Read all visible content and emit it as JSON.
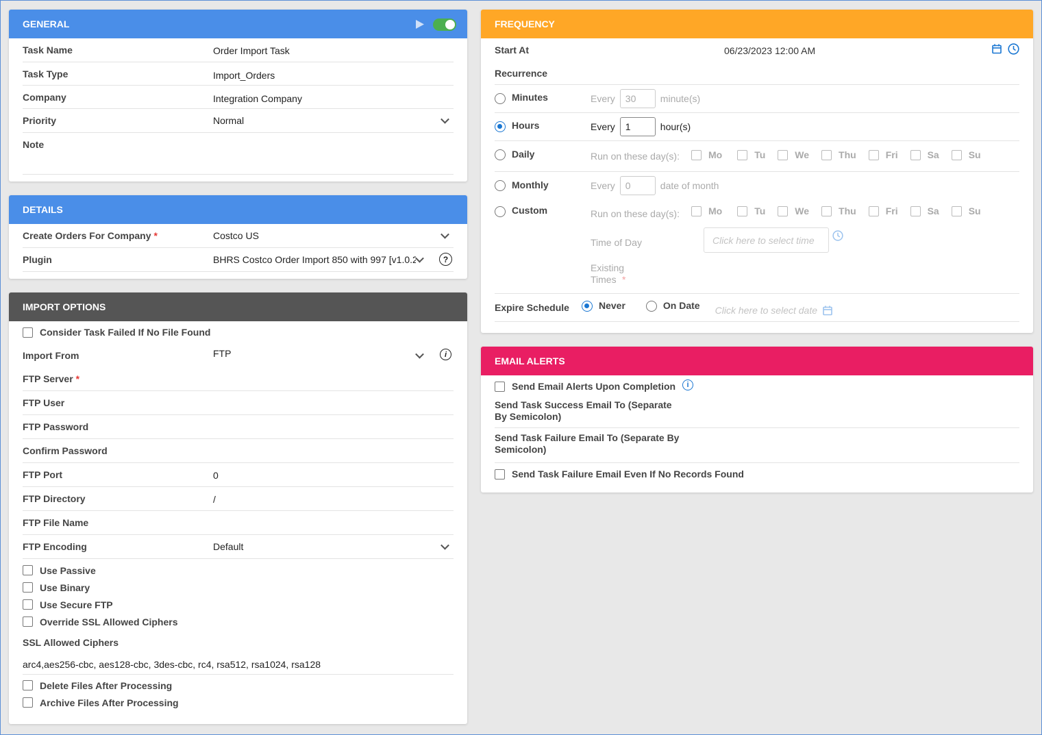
{
  "colors": {
    "general": "#4a8ee8",
    "details": "#4a8ee8",
    "import": "#555555",
    "frequency": "#ffa726",
    "email": "#e91e63",
    "accent": "#1976d2",
    "toggle": "#4caf50"
  },
  "general": {
    "title": "GENERAL",
    "task_name_label": "Task Name",
    "task_name": "Order Import Task",
    "task_type_label": "Task Type",
    "task_type": "Import_Orders",
    "company_label": "Company",
    "company": "Integration Company",
    "priority_label": "Priority",
    "priority": "Normal",
    "note_label": "Note",
    "enabled": true
  },
  "details": {
    "title": "DETAILS",
    "create_orders_label": "Create Orders For Company",
    "create_orders_value": "Costco US",
    "plugin_label": "Plugin",
    "plugin_value": "BHRS Costco Order Import 850 with 997 [v1.0.2",
    "required_mark": "*",
    "help_icon": "?"
  },
  "import_options": {
    "title": "IMPORT OPTIONS",
    "fail_no_file": "Consider Task Failed If No File Found",
    "import_from_label": "Import From",
    "import_from_value": "FTP",
    "ftp_server_label": "FTP Server",
    "ftp_user_label": "FTP User",
    "ftp_password_label": "FTP Password",
    "confirm_password_label": "Confirm Password",
    "ftp_port_label": "FTP Port",
    "ftp_port_value": "0",
    "ftp_directory_label": "FTP Directory",
    "ftp_directory_value": "/",
    "ftp_file_name_label": "FTP File Name",
    "ftp_encoding_label": "FTP Encoding",
    "ftp_encoding_value": "Default",
    "use_passive": "Use Passive",
    "use_binary": "Use Binary",
    "use_secure_ftp": "Use Secure FTP",
    "override_ssl": "Override SSL Allowed Ciphers",
    "ssl_ciphers_label": "SSL Allowed Ciphers",
    "ssl_ciphers_value": "arc4,aes256-cbc, aes128-cbc, 3des-cbc, rc4, rsa512, rsa1024, rsa128",
    "delete_files": "Delete Files After Processing",
    "archive_files": "Archive Files After Processing",
    "info_icon": "i"
  },
  "frequency": {
    "title": "FREQUENCY",
    "start_at_label": "Start At",
    "start_at_value": "06/23/2023 12:00 AM",
    "recurrence_label": "Recurrence",
    "minutes_label": "Minutes",
    "minutes_every": "Every",
    "minutes_value": "30",
    "minutes_unit": "minute(s)",
    "hours_label": "Hours",
    "hours_every": "Every",
    "hours_value": "1",
    "hours_unit": "hour(s)",
    "daily_label": "Daily",
    "run_days_label": "Run on these day(s):",
    "days": [
      "Mo",
      "Tu",
      "We",
      "Thu",
      "Fri",
      "Sa",
      "Su"
    ],
    "monthly_label": "Monthly",
    "monthly_every": "Every",
    "monthly_value": "0",
    "monthly_unit": "date of month",
    "custom_label": "Custom",
    "time_of_day_label": "Time of Day",
    "time_placeholder": "Click here to select time",
    "existing_times_label": "Existing Times",
    "expire_label": "Expire Schedule",
    "never_label": "Never",
    "on_date_label": "On Date",
    "date_placeholder": "Click here to select date",
    "selected_recurrence": "Hours"
  },
  "email": {
    "title": "EMAIL ALERTS",
    "send_alerts": "Send Email Alerts Upon Completion",
    "success_label": "Send Task Success Email To (Separate By Semicolon)",
    "failure_label": "Send Task Failure Email To (Separate By Semicolon)",
    "failure_no_records": "Send Task Failure Email Even If No Records Found",
    "info_icon": "i"
  }
}
